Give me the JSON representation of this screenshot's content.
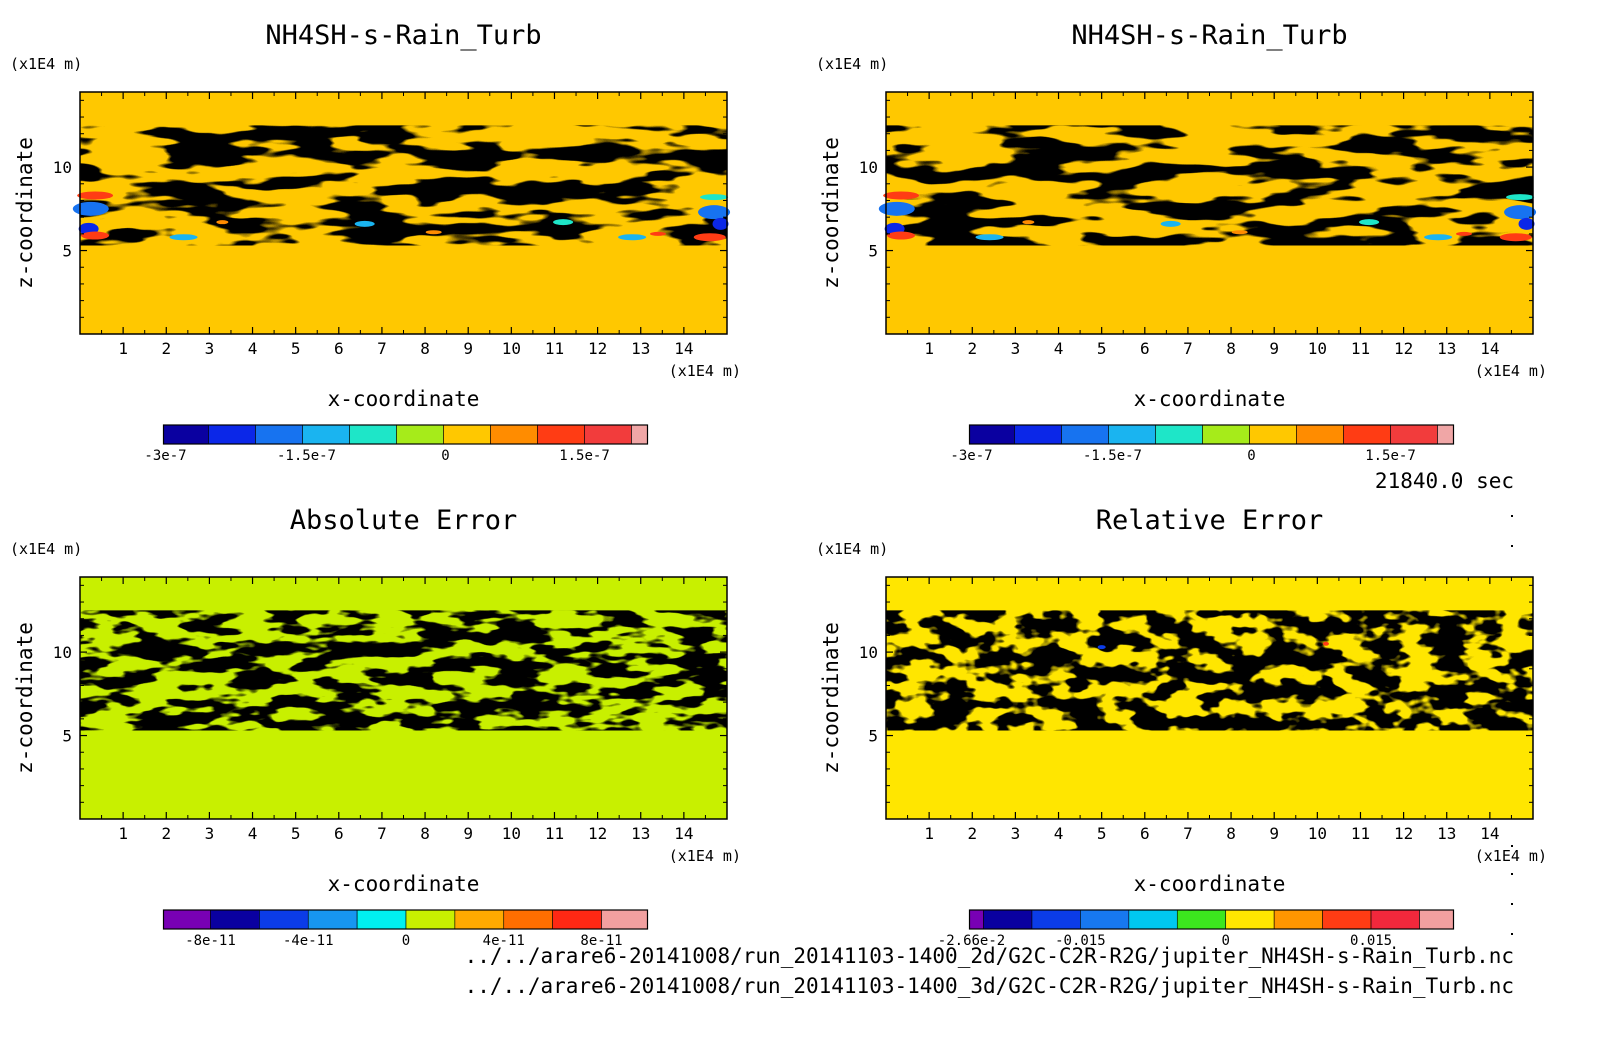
{
  "time_label": "21840.0 sec",
  "file_paths": [
    "../../arare6-20141008/run_20141103-1400_2d/G2C-C2R-R2G/jupiter_NH4SH-s-Rain_Turb.nc",
    "../../arare6-20141008/run_20141103-1400_3d/G2C-C2R-R2G/jupiter_NH4SH-s-Rain_Turb.nc"
  ],
  "chart_data": [
    {
      "type": "heatmap",
      "title": "NH4SH-s-Rain_Turb",
      "xlabel": "x-coordinate",
      "ylabel": "z-coordinate",
      "x_unit": "(x1E4 m)",
      "y_unit": "(x1E4 m)",
      "xlim": [
        0,
        15
      ],
      "ylim": [
        0,
        14.5
      ],
      "x_ticks": [
        "1",
        "2",
        "3",
        "4",
        "5",
        "6",
        "7",
        "8",
        "9",
        "10",
        "11",
        "12",
        "13",
        "14"
      ],
      "y_ticks": [
        "5",
        "10"
      ],
      "background_color": "#ffc800",
      "pattern_color": "#a6eb1a",
      "colorbar": {
        "colors": [
          "#0a00a0",
          "#0b27e8",
          "#1773f0",
          "#1ab4f0",
          "#1ee6c8",
          "#a6eb1a",
          "#ffc800",
          "#ff8c00",
          "#ff3c14",
          "#f23c3c",
          "#f0a6a6"
        ],
        "labels": [
          "-3e-7",
          "-1.5e-7",
          "0",
          "1.5e-7"
        ]
      }
    },
    {
      "type": "heatmap",
      "title": "NH4SH-s-Rain_Turb",
      "xlabel": "x-coordinate",
      "ylabel": "z-coordinate",
      "x_unit": "(x1E4 m)",
      "y_unit": "(x1E4 m)",
      "xlim": [
        0,
        15
      ],
      "ylim": [
        0,
        14.5
      ],
      "x_ticks": [
        "1",
        "2",
        "3",
        "4",
        "5",
        "6",
        "7",
        "8",
        "9",
        "10",
        "11",
        "12",
        "13",
        "14"
      ],
      "y_ticks": [
        "5",
        "10"
      ],
      "background_color": "#ffc800",
      "pattern_color": "#a6eb1a",
      "colorbar": {
        "colors": [
          "#0a00a0",
          "#0b27e8",
          "#1773f0",
          "#1ab4f0",
          "#1ee6c8",
          "#a6eb1a",
          "#ffc800",
          "#ff8c00",
          "#ff3c14",
          "#f23c3c",
          "#f0a6a6"
        ],
        "labels": [
          "-3e-7",
          "-1.5e-7",
          "0",
          "1.5e-7"
        ]
      }
    },
    {
      "type": "heatmap",
      "title": "Absolute Error",
      "xlabel": "x-coordinate",
      "ylabel": "z-coordinate",
      "x_unit": "(x1E4 m)",
      "y_unit": "(x1E4 m)",
      "xlim": [
        0,
        15
      ],
      "ylim": [
        0,
        14.5
      ],
      "x_ticks": [
        "1",
        "2",
        "3",
        "4",
        "5",
        "6",
        "7",
        "8",
        "9",
        "10",
        "11",
        "12",
        "13",
        "14"
      ],
      "y_ticks": [
        "5",
        "10"
      ],
      "background_color": "#c8f000",
      "pattern_color": "#00e6f0",
      "colorbar": {
        "colors": [
          "#7800b4",
          "#0a00a0",
          "#0b3ce8",
          "#1796f0",
          "#00f0f0",
          "#c8f000",
          "#ffaa00",
          "#ff6e00",
          "#ff2814",
          "#f2a0a0"
        ],
        "labels": [
          "-8e-11",
          "-4e-11",
          "0",
          "4e-11",
          "8e-11"
        ]
      }
    },
    {
      "type": "heatmap",
      "title": "Relative Error",
      "xlabel": "x-coordinate",
      "ylabel": "z-coordinate",
      "x_unit": "(x1E4 m)",
      "y_unit": "(x1E4 m)",
      "xlim": [
        0,
        15
      ],
      "ylim": [
        0,
        14.5
      ],
      "x_ticks": [
        "1",
        "2",
        "3",
        "4",
        "5",
        "6",
        "7",
        "8",
        "9",
        "10",
        "11",
        "12",
        "13",
        "14"
      ],
      "y_ticks": [
        "5",
        "10"
      ],
      "background_color": "#ffe600",
      "pattern_color": "#3ce61e",
      "colorbar": {
        "colors": [
          "#7800b4",
          "#0a00a0",
          "#0b3ce8",
          "#1778f0",
          "#00c8f0",
          "#3ce61e",
          "#ffe600",
          "#ff9600",
          "#ff3c14",
          "#f2283c",
          "#f2a0a0"
        ],
        "labels": [
          "-2.66e-2",
          "-0.015",
          "0",
          "0.015"
        ]
      }
    }
  ]
}
